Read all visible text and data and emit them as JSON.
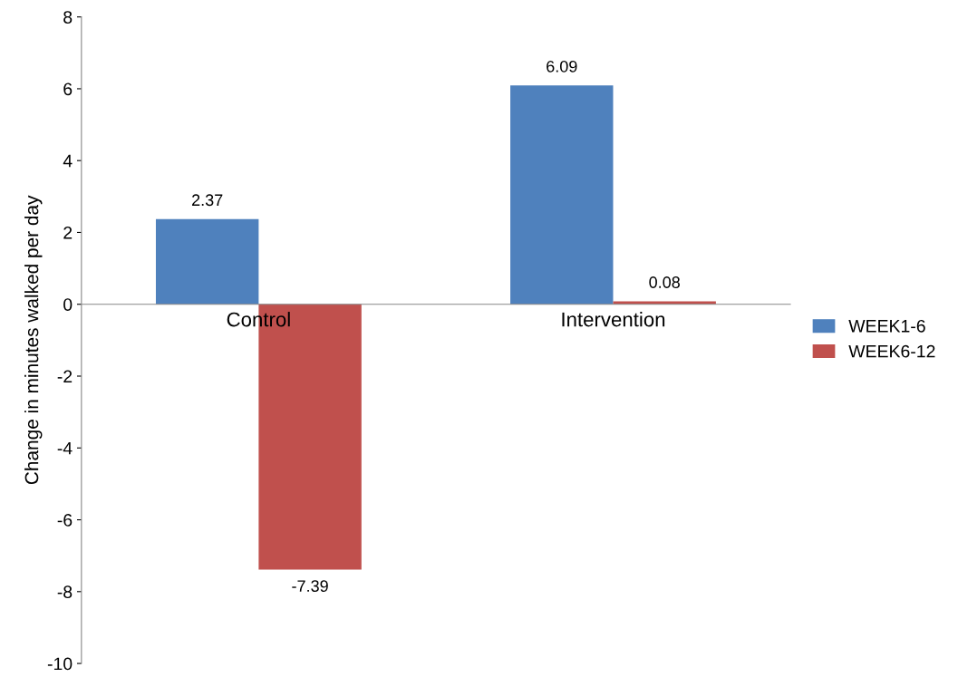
{
  "chart_data": {
    "type": "bar",
    "ylabel": "Change in minutes walked per day",
    "categories": [
      "Control",
      "Intervention"
    ],
    "series": [
      {
        "name": "WEEK1-6",
        "color": "#4f81bd",
        "values": [
          2.37,
          6.09
        ]
      },
      {
        "name": "WEEK6-12",
        "color": "#c0504d",
        "values": [
          -7.39,
          0.08
        ]
      }
    ],
    "ylim": [
      -10,
      8
    ],
    "yticks": [
      -10,
      -8,
      -6,
      -4,
      -2,
      0,
      2,
      4,
      6,
      8
    ],
    "data_labels": true,
    "legend": "right",
    "grid": false
  }
}
